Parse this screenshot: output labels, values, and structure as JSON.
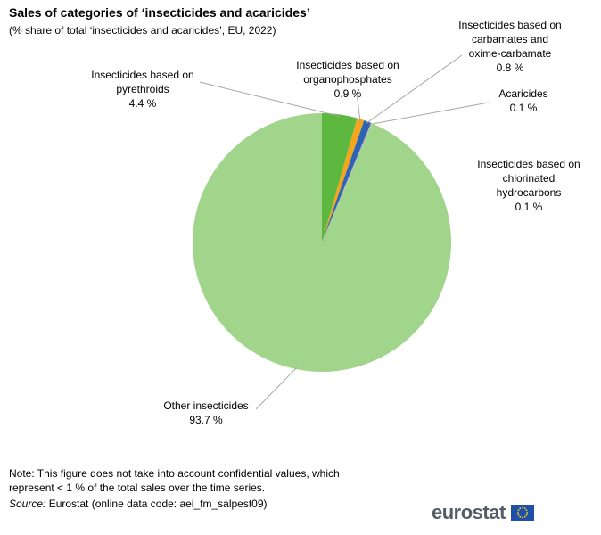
{
  "title": "Sales of categories of ‘insecticides and acaricides’",
  "subtitle": "(% share of total ‘insecticides and acaricides’, EU, 2022)",
  "note": "Note: This figure  does not take into account confidential values, which represent  < 1 % of the total sales over  the time series.",
  "source_label": "Source:",
  "source_text": " Eurostat (online data code: aei_fm_salpest09)",
  "logo_text": "eurostat",
  "chart_data": {
    "type": "pie",
    "slices": [
      {
        "label": [
          "Insecticides based on",
          "pyrethroids"
        ],
        "value": 4.4,
        "value_text": "4.4 %",
        "color": "#5db83f"
      },
      {
        "label": [
          "Insecticides based on",
          "organophosphates"
        ],
        "value": 0.9,
        "value_text": "0.9 %",
        "color": "#f3a61d"
      },
      {
        "label": [
          "Insecticides based on",
          "carbamates and",
          "oxime-carbamate"
        ],
        "value": 0.8,
        "value_text": "0.8 %",
        "color": "#2b63b5"
      },
      {
        "label": [
          "Acaricides"
        ],
        "value": 0.1,
        "value_text": "0.1 %",
        "color": "#1f4e9c"
      },
      {
        "label": [
          "Insecticides based on",
          "chlorinated",
          "hydrocarbons"
        ],
        "value": 0.1,
        "value_text": "0.1 %",
        "color": "#c89bd3"
      },
      {
        "label": [
          "Other insecticides"
        ],
        "value": 93.7,
        "value_text": "93.7 %",
        "color": "#a1d58b"
      }
    ]
  }
}
